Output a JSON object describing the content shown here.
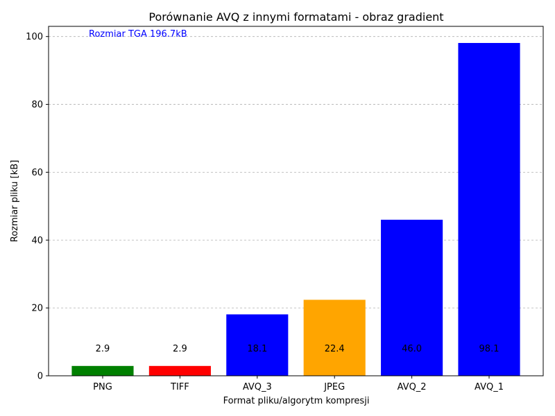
{
  "chart_data": {
    "type": "bar",
    "title": "Porównanie AVQ z innymi formatami - obraz gradient",
    "xlabel": "Format pliku/algorytm kompresji",
    "ylabel": "Rozmiar pliku [kB]",
    "annotation": "Rozmiar TGA 196.7kB",
    "annotation_color": "#0000ff",
    "categories": [
      "PNG",
      "TIFF",
      "AVQ_3",
      "JPEG",
      "AVQ_2",
      "AVQ_1"
    ],
    "values": [
      2.9,
      2.9,
      18.1,
      22.4,
      46.0,
      98.1
    ],
    "value_labels": [
      "2.9",
      "2.9",
      "18.1",
      "22.4",
      "46.0",
      "98.1"
    ],
    "colors": [
      "#008000",
      "#ff0000",
      "#0000ff",
      "#ffa500",
      "#0000ff",
      "#0000ff"
    ],
    "ylim": [
      0,
      103
    ],
    "yticks": [
      0,
      20,
      40,
      60,
      80,
      100
    ],
    "grid": "y-dashed",
    "legend": "none"
  }
}
